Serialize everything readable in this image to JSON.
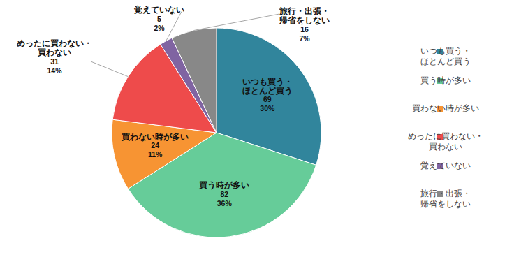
{
  "chart_data": {
    "type": "pie",
    "categories": [
      "いつも買う・ほとんど買う",
      "買う時が多い",
      "買わない時が多い",
      "めったに買わない・買わない",
      "覚えていない",
      "旅行・出張・帰省をしない"
    ],
    "values": [
      30,
      36,
      11,
      14,
      2,
      7
    ],
    "value_labels": [
      "30%",
      "36%",
      "11%",
      "14%",
      "2%",
      "7%"
    ],
    "counts": [
      69,
      82,
      24,
      31,
      5,
      16
    ],
    "colors": [
      "#31859c",
      "#66cc99",
      "#f79433",
      "#ee4b4b",
      "#8064a2",
      "#888888"
    ],
    "data_labels": true,
    "legend": "right"
  }
}
